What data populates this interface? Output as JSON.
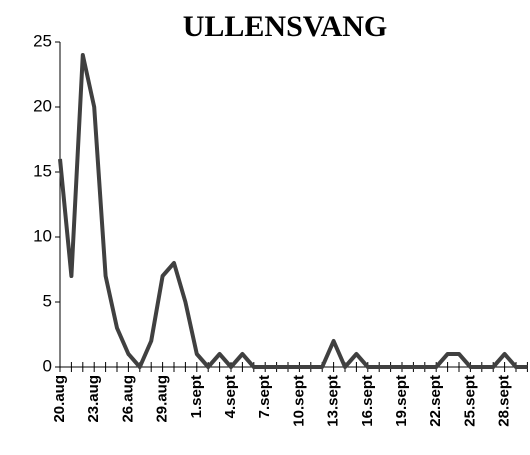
{
  "chart_data": {
    "type": "line",
    "title": "ULLENSVANG",
    "categories": [
      "20.aug",
      null,
      null,
      "23.aug",
      null,
      null,
      "26.aug",
      null,
      null,
      "29.aug",
      null,
      null,
      "1.sept",
      null,
      null,
      "4.sept",
      null,
      null,
      "7.sept",
      null,
      null,
      "10.sept",
      null,
      null,
      "13.sept",
      null,
      null,
      "16.sept",
      null,
      null,
      "19.sept",
      null,
      null,
      "22.sept",
      null,
      null,
      "25.sept",
      null,
      null,
      "28.sept",
      null,
      null
    ],
    "series": [
      {
        "name": null,
        "color": "#404040",
        "values": [
          16,
          7,
          24,
          20,
          7,
          3,
          1,
          0,
          2,
          7,
          8,
          5,
          1,
          0,
          1,
          0,
          1,
          0,
          0,
          0,
          0,
          0,
          0,
          0,
          2,
          0,
          1,
          0,
          0,
          0,
          0,
          0,
          0,
          0,
          1,
          1,
          0,
          0,
          0,
          1,
          0,
          0
        ]
      }
    ],
    "ylim": [
      0,
      25
    ],
    "yticks": [
      0,
      5,
      10,
      15,
      20,
      25
    ],
    "grid": false
  }
}
